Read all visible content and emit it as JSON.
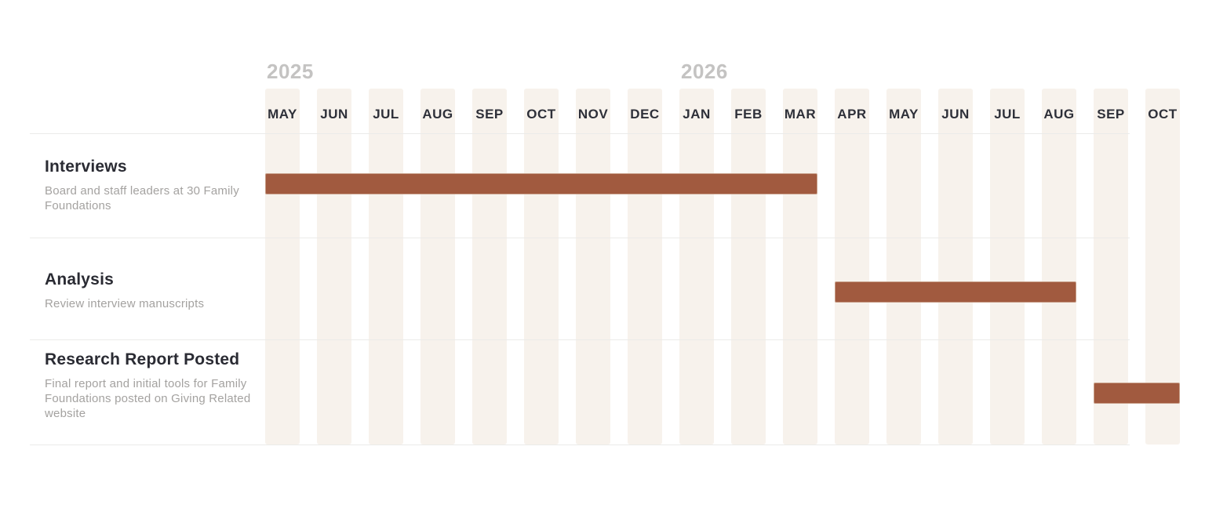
{
  "chart_data": {
    "type": "gantt",
    "timeline": {
      "years": [
        {
          "label": "2025",
          "month_index": 0
        },
        {
          "label": "2026",
          "month_index": 8
        }
      ],
      "months": [
        "MAY",
        "JUN",
        "JUL",
        "AUG",
        "SEP",
        "OCT",
        "NOV",
        "DEC",
        "JAN",
        "FEB",
        "MAR",
        "APR",
        "MAY",
        "JUN",
        "JUL",
        "AUG",
        "SEP",
        "OCT"
      ]
    },
    "tasks": [
      {
        "title": "Interviews",
        "description": "Board and staff leaders at 30 Family Foundations",
        "start": "May 2025",
        "end": "Mar 2026",
        "start_month_index": 0,
        "duration_months": 11
      },
      {
        "title": "Analysis",
        "description": "Review interview manuscripts",
        "start": "Apr 2026",
        "end": "Aug 2026",
        "start_month_index": 11,
        "duration_months": 5
      },
      {
        "title": "Research Report Posted",
        "description": "Final report and initial tools for Family Foundations posted on Giving Related website",
        "start": "Sep 2026",
        "end": "Oct 2026",
        "start_month_index": 16,
        "duration_months": 2
      }
    ],
    "colors": {
      "bar": "#a15a3f",
      "bar_border": "#c79e88",
      "column_background": "#f7f2ec",
      "month_label": "#2e3039",
      "year_label": "#c4c3c2",
      "task_title": "#2a2b33",
      "task_description": "#a4a2a0",
      "grid_line": "#ebebe9",
      "background": "#ffffff"
    },
    "layout_hints": {
      "legend": "none",
      "grid": "horizontal row separators only",
      "orientation": "horizontal bars over monthly columns"
    }
  }
}
